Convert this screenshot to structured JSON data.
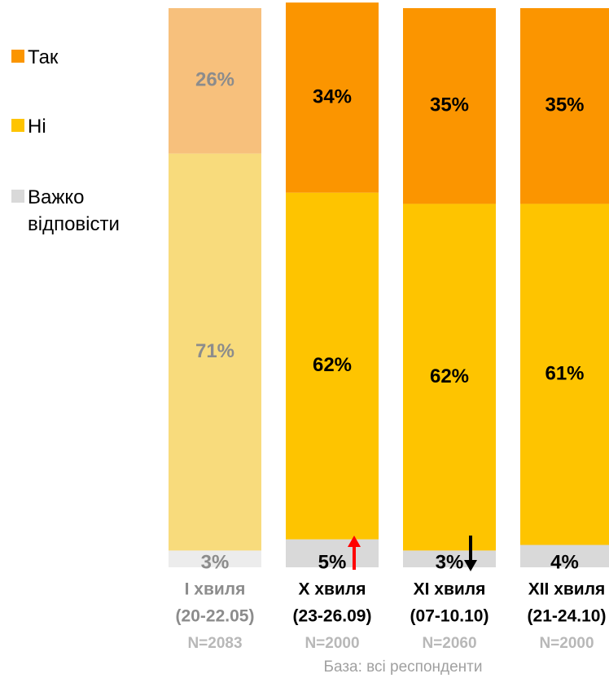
{
  "chart_data": {
    "type": "stacked_bar",
    "categories": [
      "I хвиля",
      "X хвиля",
      "XI хвиля",
      "XII хвиля"
    ],
    "periods": [
      "(20-22.05)",
      "(23-26.09)",
      "(07-10.10)",
      "(21-24.10)"
    ],
    "sample_sizes": [
      "N=2083",
      "N=2000",
      "N=2060",
      "N=2000"
    ],
    "series": [
      {
        "name": "Важко відповісти",
        "color": "#d9d9d9",
        "faded_color": "#ececec",
        "values": [
          3,
          5,
          3,
          4
        ],
        "value_labels": [
          "3%",
          "5%",
          "3%",
          "4%"
        ]
      },
      {
        "name": "Ні",
        "color": "#fec400",
        "faded_color": "#f8db7c",
        "values": [
          71,
          62,
          62,
          61
        ],
        "value_labels": [
          "71%",
          "62%",
          "62%",
          "61%"
        ]
      },
      {
        "name": "Так",
        "color": "#fb9500",
        "faded_color": "#f7c07c",
        "values": [
          26,
          34,
          35,
          35
        ],
        "value_labels": [
          "26%",
          "34%",
          "35%",
          "35%"
        ]
      }
    ],
    "ylim": [
      0,
      100
    ],
    "faded_categories": [
      0
    ],
    "footnote": "База: всі респонденти"
  }
}
